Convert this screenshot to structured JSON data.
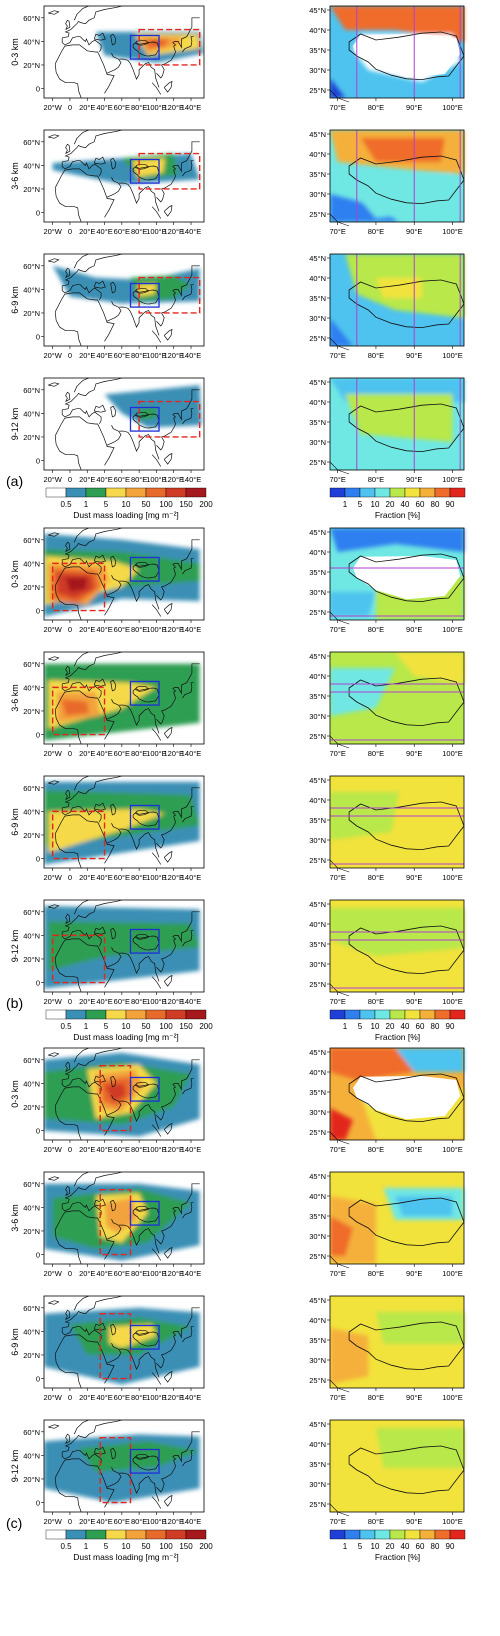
{
  "figure": {
    "left_maps": {
      "lat_ticks": [
        "60°N",
        "40°N",
        "20°N",
        "0"
      ],
      "lon_ticks": [
        "20°W",
        "0",
        "20°E",
        "40°E",
        "60°E",
        "80°E",
        "100°E",
        "120°E",
        "140°E"
      ]
    },
    "right_maps": {
      "lat_ticks": [
        "45°N",
        "40°N",
        "35°N",
        "30°N",
        "25°N"
      ],
      "lon_ticks": [
        "70°E",
        "80°E",
        "90°E",
        "100°E"
      ]
    },
    "row_labels": [
      "0-3 km",
      "3-6 km",
      "6-9 km",
      "9-12 km"
    ],
    "dust_colorbar": {
      "label": "Dust mass loading [mg m⁻²]",
      "ticks": [
        "0.5",
        "1",
        "5",
        "10",
        "50",
        "100",
        "150",
        "200"
      ],
      "colors": [
        "#ffffff",
        "#3a8fb5",
        "#2e9e52",
        "#f5d94a",
        "#f3a33c",
        "#e86a2a",
        "#cf3b25",
        "#a5181c"
      ]
    },
    "fraction_colorbar": {
      "label": "Fraction [%]",
      "ticks": [
        "1",
        "5",
        "10",
        "20",
        "40",
        "60",
        "80",
        "90"
      ],
      "colors": [
        "#1f3fd6",
        "#2f7ff0",
        "#4ec3ef",
        "#6fe7e3",
        "#b8e84a",
        "#f2e23c",
        "#f5b03a",
        "#ef6c2a",
        "#e3261d"
      ]
    },
    "panels": [
      {
        "letter": "(a)"
      },
      {
        "letter": "(b)"
      },
      {
        "letter": "(c)"
      }
    ],
    "colors": {
      "source_box": "#e3261d",
      "tibet_box": "#1e2fd8",
      "transect_line": "#b13fd1",
      "coast": "#111111"
    }
  }
}
